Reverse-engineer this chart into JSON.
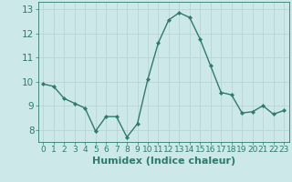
{
  "x": [
    0,
    1,
    2,
    3,
    4,
    5,
    6,
    7,
    8,
    9,
    10,
    11,
    12,
    13,
    14,
    15,
    16,
    17,
    18,
    19,
    20,
    21,
    22,
    23
  ],
  "y": [
    9.9,
    9.8,
    9.3,
    9.1,
    8.9,
    7.95,
    8.55,
    8.55,
    7.7,
    8.25,
    10.1,
    11.6,
    12.55,
    12.85,
    12.65,
    11.75,
    10.65,
    9.55,
    9.45,
    8.7,
    8.75,
    9.0,
    8.65,
    8.8
  ],
  "line_color": "#2e7b6e",
  "marker": "D",
  "marker_size": 2.2,
  "bg_color": "#cde8e8",
  "plot_bg_color": "#cde8e8",
  "grid_color": "#b8d4d4",
  "xlabel": "Humidex (Indice chaleur)",
  "ylim": [
    7.5,
    13.3
  ],
  "xlim": [
    -0.5,
    23.5
  ],
  "yticks": [
    8,
    9,
    10,
    11,
    12,
    13
  ],
  "xticks": [
    0,
    1,
    2,
    3,
    4,
    5,
    6,
    7,
    8,
    9,
    10,
    11,
    12,
    13,
    14,
    15,
    16,
    17,
    18,
    19,
    20,
    21,
    22,
    23
  ],
  "tick_color": "#2e7b6e",
  "label_color": "#2e7b6e",
  "font_size": 6.5
}
